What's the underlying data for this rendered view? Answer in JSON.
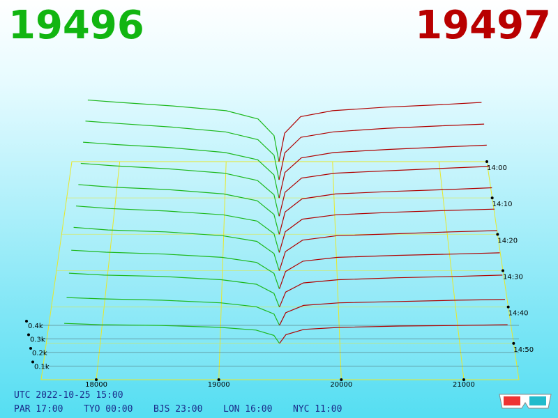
{
  "header": {
    "bid": "19496",
    "ask": "19497"
  },
  "chart_data": {
    "type": "depth3d",
    "bid_color": "#1db81d",
    "ask_color": "#b00000",
    "grid_color": "#e8e82a",
    "xlim": [
      17550,
      21450
    ],
    "xticks": [
      18000,
      19000,
      20000,
      21000
    ],
    "ylim": [
      0,
      600
    ],
    "yticks": [
      {
        "value": 100,
        "label": "0.1k"
      },
      {
        "value": 200,
        "label": "0.2k"
      },
      {
        "value": 300,
        "label": "0.3k"
      },
      {
        "value": 400,
        "label": "0.4k"
      }
    ],
    "zlim": [
      "14:00",
      "15:00"
    ],
    "zticks": [
      "14:00",
      "14:10",
      "14:20",
      "14:30",
      "14:40",
      "14:50"
    ],
    "bid_prices": [
      17700,
      18000,
      18500,
      19000,
      19300,
      19450,
      19496
    ],
    "ask_prices": [
      19497,
      19550,
      19700,
      20000,
      20500,
      21000,
      21400
    ],
    "times": [
      "14:00",
      "14:05",
      "14:10",
      "14:15",
      "14:20",
      "14:25",
      "14:30",
      "14:35",
      "14:40",
      "14:45",
      "14:50"
    ],
    "snapshots": [
      {
        "bids": [
          520,
          500,
          470,
          430,
          360,
          220,
          0
        ],
        "asks": [
          0,
          240,
          380,
          430,
          460,
          480,
          500
        ]
      },
      {
        "bids": [
          490,
          470,
          440,
          400,
          335,
          205,
          0
        ],
        "asks": [
          0,
          225,
          355,
          400,
          430,
          450,
          465
        ]
      },
      {
        "bids": [
          460,
          440,
          415,
          375,
          315,
          190,
          0
        ],
        "asks": [
          0,
          210,
          330,
          375,
          400,
          420,
          435
        ]
      },
      {
        "bids": [
          430,
          410,
          385,
          350,
          290,
          175,
          0
        ],
        "asks": [
          0,
          195,
          310,
          350,
          370,
          390,
          405
        ]
      },
      {
        "bids": [
          400,
          380,
          360,
          325,
          270,
          160,
          0
        ],
        "asks": [
          0,
          180,
          285,
          325,
          345,
          360,
          375
        ]
      },
      {
        "bids": [
          370,
          350,
          330,
          300,
          250,
          150,
          0
        ],
        "asks": [
          0,
          165,
          265,
          300,
          320,
          335,
          345
        ]
      },
      {
        "bids": [
          340,
          320,
          305,
          275,
          230,
          135,
          0
        ],
        "asks": [
          0,
          150,
          240,
          275,
          290,
          305,
          315
        ]
      },
      {
        "bids": [
          300,
          285,
          270,
          245,
          205,
          120,
          0
        ],
        "asks": [
          0,
          135,
          215,
          245,
          260,
          270,
          280
        ]
      },
      {
        "bids": [
          260,
          245,
          235,
          210,
          175,
          105,
          0
        ],
        "asks": [
          0,
          115,
          185,
          210,
          225,
          235,
          245
        ]
      },
      {
        "bids": [
          210,
          200,
          190,
          170,
          140,
          85,
          0
        ],
        "asks": [
          0,
          95,
          150,
          170,
          180,
          190,
          195
        ]
      },
      {
        "bids": [
          150,
          140,
          135,
          120,
          100,
          60,
          0
        ],
        "asks": [
          0,
          65,
          105,
          120,
          130,
          135,
          140
        ]
      }
    ]
  },
  "footer": {
    "utc": "UTC 2022-10-25 15:00",
    "zones": [
      "PAR 17:00",
      "TYO 00:00",
      "BJS 23:00",
      "LON 16:00",
      "NYC 11:00"
    ]
  }
}
